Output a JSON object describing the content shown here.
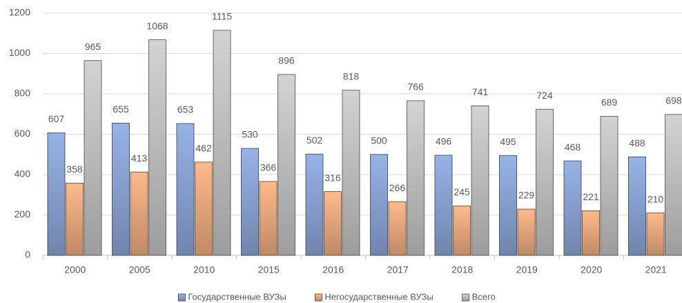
{
  "chart_data": {
    "type": "bar",
    "categories": [
      "2000",
      "2005",
      "2010",
      "2015",
      "2016",
      "2017",
      "2018",
      "2019",
      "2020",
      "2021"
    ],
    "series": [
      {
        "name": "Государственные ВУЗы",
        "color": "#8faadc",
        "values": [
          607,
          655,
          653,
          530,
          502,
          500,
          496,
          495,
          468,
          488
        ]
      },
      {
        "name": "Негосударственные ВУЗы",
        "color": "#f4b183",
        "values": [
          358,
          413,
          462,
          366,
          316,
          266,
          245,
          229,
          221,
          210
        ]
      },
      {
        "name": "Всего",
        "color": "#c9c9c9",
        "values": [
          965,
          1068,
          1115,
          896,
          818,
          766,
          741,
          724,
          689,
          698
        ]
      }
    ],
    "ylim": [
      0,
      1200
    ],
    "yticks": [
      0,
      200,
      400,
      600,
      800,
      1000,
      1200
    ],
    "grid": true,
    "legend": "bottom"
  }
}
